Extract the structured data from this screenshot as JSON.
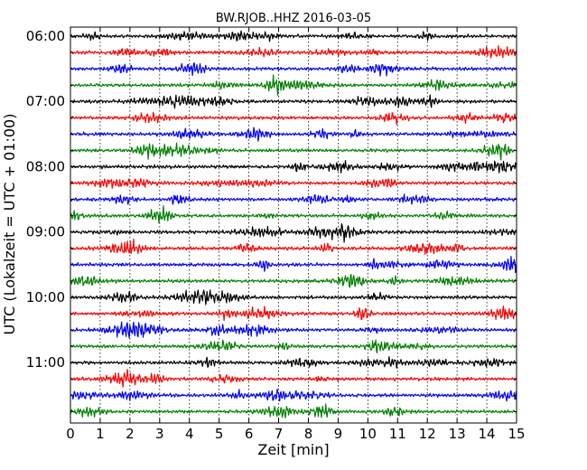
{
  "chart_data": {
    "type": "line",
    "title": "BW.RJOB..HHZ 2016-03-05",
    "xlabel": "Zeit  [min]",
    "ylabel": "UTC (Lokalzeit = UTC + 01:00)",
    "xlim": [
      0,
      15
    ],
    "x_ticks": [
      "0",
      "1",
      "2",
      "3",
      "4",
      "5",
      "6",
      "7",
      "8",
      "9",
      "10",
      "11",
      "12",
      "13",
      "14",
      "15"
    ],
    "y_tick_labels": [
      "06:00",
      "07:00",
      "08:00",
      "09:00",
      "10:00",
      "11:00"
    ],
    "traces_per_hour": 4,
    "trace_count": 24,
    "trace_colors": [
      "#000000",
      "#ff0000",
      "#0000ff",
      "#007f00"
    ],
    "grid": "vertical dotted",
    "traces": [
      {
        "start": "06:00",
        "color": "#000000"
      },
      {
        "start": "06:15",
        "color": "#ff0000"
      },
      {
        "start": "06:30",
        "color": "#0000ff"
      },
      {
        "start": "06:45",
        "color": "#007f00"
      },
      {
        "start": "07:00",
        "color": "#000000"
      },
      {
        "start": "07:15",
        "color": "#ff0000"
      },
      {
        "start": "07:30",
        "color": "#0000ff"
      },
      {
        "start": "07:45",
        "color": "#007f00"
      },
      {
        "start": "08:00",
        "color": "#000000"
      },
      {
        "start": "08:15",
        "color": "#ff0000"
      },
      {
        "start": "08:30",
        "color": "#0000ff"
      },
      {
        "start": "08:45",
        "color": "#007f00"
      },
      {
        "start": "09:00",
        "color": "#000000"
      },
      {
        "start": "09:15",
        "color": "#ff0000"
      },
      {
        "start": "09:30",
        "color": "#0000ff"
      },
      {
        "start": "09:45",
        "color": "#007f00"
      },
      {
        "start": "10:00",
        "color": "#000000"
      },
      {
        "start": "10:15",
        "color": "#ff0000"
      },
      {
        "start": "10:30",
        "color": "#0000ff"
      },
      {
        "start": "10:45",
        "color": "#007f00"
      },
      {
        "start": "11:00",
        "color": "#000000"
      },
      {
        "start": "11:15",
        "color": "#ff0000"
      },
      {
        "start": "11:30",
        "color": "#0000ff"
      },
      {
        "start": "11:45",
        "color": "#007f00"
      }
    ]
  }
}
